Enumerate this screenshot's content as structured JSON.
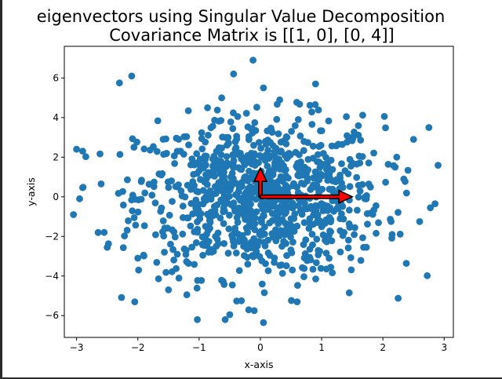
{
  "chart_data": {
    "type": "scatter",
    "title": "eigenvectors using Singular Value Decomposition",
    "subtitle": "Covariance Matrix is [[1, 0], [0, 4]]",
    "xlabel": "x-axis",
    "ylabel": "y-axis",
    "xlim": [
      -3.2,
      3.15
    ],
    "ylim": [
      -7.1,
      7.6
    ],
    "xticks": [
      -3,
      -2,
      -1,
      0,
      1,
      2,
      3
    ],
    "xtick_labels": [
      "−3",
      "−2",
      "−1",
      "0",
      "1",
      "2",
      "3"
    ],
    "yticks": [
      -6,
      -4,
      -2,
      0,
      2,
      4,
      6
    ],
    "ytick_labels": [
      "−6",
      "−4",
      "−2",
      "0",
      "2",
      "4",
      "6"
    ],
    "grid": false,
    "legend": "none",
    "colors": {
      "points": "#1f77b4",
      "arrow_fill": "#ff0000",
      "arrow_edge": "#000000"
    },
    "points": {
      "count": 1000,
      "distribution": "bivariate normal",
      "mean": [
        0,
        0
      ],
      "covariance": [
        [
          1,
          0
        ],
        [
          0,
          4
        ]
      ],
      "outliers": [
        [
          -0.12,
          6.9
        ],
        [
          -2.1,
          6.1
        ],
        [
          -2.3,
          5.75
        ],
        [
          0.05,
          5.5
        ],
        [
          0.9,
          5.7
        ],
        [
          -3.0,
          2.4
        ],
        [
          -2.95,
          -0.1
        ],
        [
          -3.05,
          -0.9
        ],
        [
          -2.6,
          0.65
        ],
        [
          -2.55,
          -1.8
        ],
        [
          -2.5,
          -2.55
        ],
        [
          2.75,
          3.5
        ],
        [
          2.85,
          -0.35
        ],
        [
          2.6,
          -1.25
        ],
        [
          2.5,
          2.9
        ],
        [
          2.2,
          1.5
        ],
        [
          -2.05,
          -5.3
        ],
        [
          -0.5,
          -5.95
        ],
        [
          -0.1,
          -5.75
        ],
        [
          0.05,
          -6.35
        ],
        [
          1.45,
          -4.85
        ],
        [
          0.6,
          -5.3
        ],
        [
          -1.2,
          -4.95
        ],
        [
          -1.5,
          -4.7
        ],
        [
          -2.0,
          -3.1
        ]
      ]
    },
    "eigenvectors": [
      {
        "origin": [
          0,
          0
        ],
        "vector": [
          0.0,
          1.45
        ]
      },
      {
        "origin": [
          0,
          0
        ],
        "vector": [
          1.5,
          0.0
        ]
      }
    ]
  }
}
